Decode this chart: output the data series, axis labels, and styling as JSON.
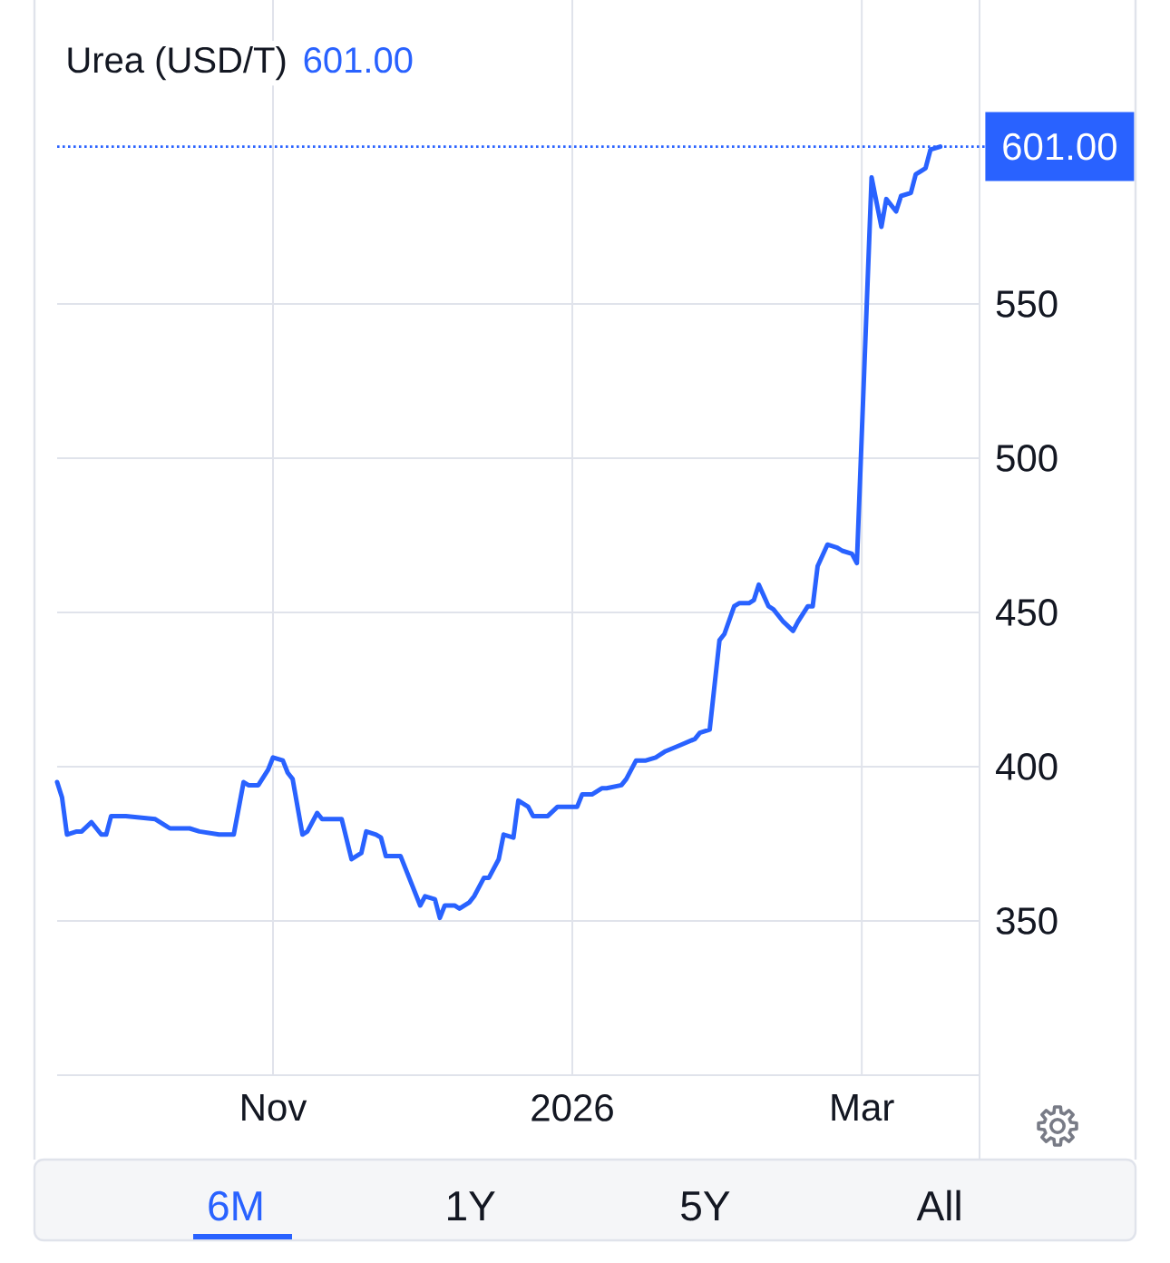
{
  "chart_data": {
    "type": "line",
    "title": "Urea (USD/T)",
    "subtitle": "601.00",
    "x": [
      "2025-09-18",
      "2025-09-19",
      "2025-09-20",
      "2025-09-22",
      "2025-09-23",
      "2025-09-25",
      "2025-09-27",
      "2025-09-28",
      "2025-09-29",
      "2025-10-02",
      "2025-10-08",
      "2025-10-10",
      "2025-10-11",
      "2025-10-15",
      "2025-10-17",
      "2025-10-21",
      "2025-10-24",
      "2025-10-26",
      "2025-10-27",
      "2025-10-29",
      "2025-10-31",
      "2025-11-01",
      "2025-11-03",
      "2025-11-04",
      "2025-11-05",
      "2025-11-07",
      "2025-11-08",
      "2025-11-10",
      "2025-11-11",
      "2025-11-15",
      "2025-11-17",
      "2025-11-19",
      "2025-11-20",
      "2025-11-22",
      "2025-11-23",
      "2025-11-24",
      "2025-11-27",
      "2025-12-01",
      "2025-12-02",
      "2025-12-04",
      "2025-12-05",
      "2025-12-06",
      "2025-12-08",
      "2025-12-09",
      "2025-12-11",
      "2025-12-12",
      "2025-12-14",
      "2025-12-15",
      "2025-12-17",
      "2025-12-18",
      "2025-12-20",
      "2025-12-21",
      "2025-12-23",
      "2025-12-24",
      "2025-12-27",
      "2025-12-29",
      "2026-01-02",
      "2026-01-03",
      "2026-01-05",
      "2026-01-07",
      "2026-01-08",
      "2026-01-11",
      "2026-01-12",
      "2026-01-14",
      "2026-01-16",
      "2026-01-18",
      "2026-01-20",
      "2026-01-23",
      "2026-01-26",
      "2026-01-27",
      "2026-01-29",
      "2026-01-31",
      "2026-02-01",
      "2026-02-03",
      "2026-02-04",
      "2026-02-06",
      "2026-02-07",
      "2026-02-08",
      "2026-02-10",
      "2026-02-11",
      "2026-02-13",
      "2026-02-15",
      "2026-02-16",
      "2026-02-18",
      "2026-02-19",
      "2026-02-20",
      "2026-02-22",
      "2026-02-24",
      "2026-02-25",
      "2026-02-27",
      "2026-02-28",
      "2026-03-03",
      "2026-03-05",
      "2026-03-06",
      "2026-03-08",
      "2026-03-09",
      "2026-03-11",
      "2026-03-12",
      "2026-03-14",
      "2026-03-15",
      "2026-03-17"
    ],
    "values": [
      395,
      390,
      378,
      379,
      379,
      382,
      378,
      378,
      384,
      384,
      383,
      381,
      380,
      380,
      379,
      378,
      378,
      395,
      394,
      394,
      399,
      403,
      402,
      398,
      396,
      378,
      379,
      385,
      383,
      383,
      370,
      372,
      379,
      378,
      377,
      371,
      371,
      355,
      358,
      357,
      351,
      355,
      355,
      354,
      356,
      358,
      364,
      364,
      370,
      378,
      377,
      389,
      387,
      384,
      384,
      387,
      387,
      391,
      391,
      393,
      393,
      394,
      396,
      402,
      402,
      403,
      405,
      407,
      409,
      411,
      412,
      441,
      443,
      452,
      453,
      453,
      454,
      459,
      452,
      451,
      447,
      444,
      447,
      452,
      452,
      465,
      472,
      471,
      470,
      469,
      466,
      591,
      575,
      584,
      580,
      585,
      586,
      592,
      594,
      600,
      601
    ],
    "color": "#2962ff",
    "line_style": "solid",
    "xlim": [
      "2025-09-18",
      "2026-03-25"
    ],
    "ylim": [
      300,
      650
    ],
    "xticks": [
      {
        "value": "2025-11-01",
        "label": "Nov"
      },
      {
        "value": "2026-01-01",
        "label": "2026"
      },
      {
        "value": "2026-03-01",
        "label": "Mar"
      }
    ],
    "yticks": [
      350,
      400,
      450,
      500,
      550
    ],
    "grid": true,
    "ref_lines": [
      {
        "axis": "y",
        "value": 601,
        "label": "601.00",
        "color": "#2962ff",
        "line_style": "dotted"
      }
    ],
    "annotations": [
      "6M",
      "1Y",
      "5Y",
      "All"
    ]
  }
}
